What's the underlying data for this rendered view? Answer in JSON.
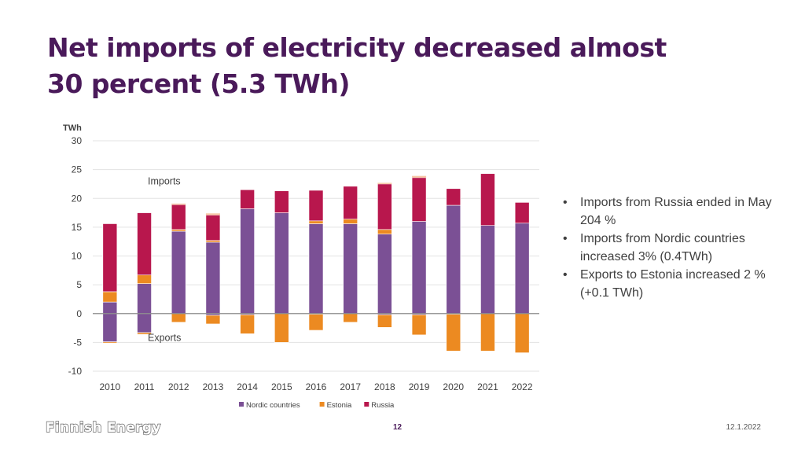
{
  "slide": {
    "title_line1": "Net imports of electricity decreased almost",
    "title_line2": "30 percent (5.3 TWh)",
    "bullets": [
      "Imports from Russia ended in May 204 %",
      "Imports from Nordic countries increased 3% (0.4TWh)",
      "Exports to Estonia increased 2 % (+0.1 TWh)"
    ],
    "logo_text": "Finnish Energy",
    "page_number": "12",
    "date": "12.1.2022"
  },
  "colors": {
    "nordic": "#7b5095",
    "estonia": "#ec8a21",
    "russia": "#b8174d",
    "estonia_light": "#f7c7a6",
    "title": "#4a1a5a"
  },
  "chart_data": {
    "type": "bar",
    "stacked": true,
    "unit_label": "TWh",
    "categories": [
      "2010",
      "2011",
      "2012",
      "2013",
      "2014",
      "2015",
      "2016",
      "2017",
      "2018",
      "2019",
      "2020",
      "2021",
      "2022"
    ],
    "ylim": [
      -10,
      30
    ],
    "yticks": [
      30,
      25,
      20,
      15,
      10,
      5,
      0,
      -5,
      -10
    ],
    "annotations": [
      "Imports",
      "Exports"
    ],
    "legend": [
      "Nordic countries",
      "Estonia",
      "Russia"
    ],
    "legend_position": "bottom",
    "series": [
      {
        "name": "Nordic countries",
        "key": "nordic",
        "imports": [
          2.0,
          5.2,
          14.3,
          12.4,
          18.2,
          17.5,
          15.6,
          15.6,
          13.8,
          16.0,
          18.8,
          15.3,
          15.7
        ],
        "exports": [
          -4.9,
          -3.3,
          0,
          -0.3,
          -0.2,
          0,
          -0.1,
          0,
          -0.2,
          -0.2,
          -0.1,
          0,
          0
        ]
      },
      {
        "name": "Estonia",
        "key": "estonia",
        "imports": [
          1.8,
          1.5,
          0.3,
          0.3,
          0,
          0,
          0.5,
          0.8,
          0.8,
          0,
          0,
          0,
          0
        ],
        "exports": [
          -0.2,
          -0.3,
          -1.5,
          -1.5,
          -3.3,
          -5.0,
          -2.8,
          -1.5,
          -2.2,
          -3.5,
          -6.4,
          -6.5,
          -6.8
        ]
      },
      {
        "name": "Russia",
        "key": "russia",
        "imports": [
          11.8,
          10.8,
          4.3,
          4.4,
          3.3,
          3.8,
          5.3,
          5.7,
          7.9,
          7.6,
          2.9,
          9.0,
          3.6
        ],
        "exports": [
          0,
          0,
          0,
          0,
          0,
          0,
          0,
          0,
          0,
          0,
          0,
          0,
          0
        ]
      }
    ],
    "light_tops": [
      0,
      0,
      0.2,
      0.3,
      0,
      0,
      0,
      0,
      0.2,
      0.3,
      0,
      0,
      0
    ]
  }
}
